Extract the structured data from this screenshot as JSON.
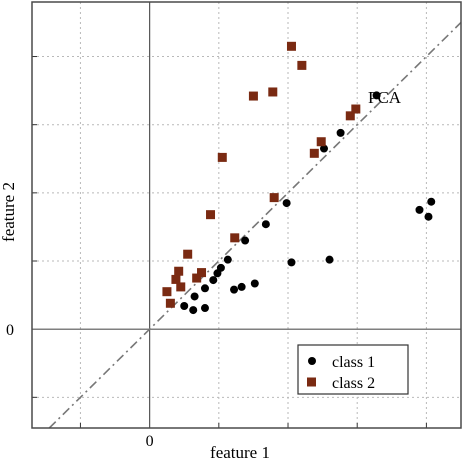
{
  "chart_data": {
    "type": "scatter",
    "xlabel": "feature 1",
    "ylabel": "feature 2",
    "xlim": [
      -1.7,
      4.5
    ],
    "ylim": [
      -1.45,
      4.8
    ],
    "x_ticks": [
      {
        "value": 0,
        "label": "0"
      }
    ],
    "y_ticks": [
      {
        "value": 0,
        "label": "0"
      }
    ],
    "grid": true,
    "annotation": "PCA",
    "legend_position": "bottom-right",
    "series": [
      {
        "name": "class 1",
        "marker": "circle",
        "color": "#000000",
        "points": [
          [
            0.5,
            0.34
          ],
          [
            0.65,
            0.48
          ],
          [
            0.8,
            0.6
          ],
          [
            0.92,
            0.72
          ],
          [
            0.98,
            0.82
          ],
          [
            1.03,
            0.9
          ],
          [
            1.13,
            1.02
          ],
          [
            1.38,
            1.3
          ],
          [
            1.68,
            1.54
          ],
          [
            1.98,
            1.85
          ],
          [
            2.52,
            2.65
          ],
          [
            2.76,
            2.88
          ],
          [
            3.28,
            3.43
          ],
          [
            0.63,
            0.28
          ],
          [
            0.8,
            0.31
          ],
          [
            1.22,
            0.58
          ],
          [
            1.33,
            0.62
          ],
          [
            1.52,
            0.67
          ],
          [
            2.05,
            0.98
          ],
          [
            2.6,
            1.02
          ],
          [
            3.9,
            1.75
          ],
          [
            4.03,
            1.65
          ],
          [
            4.07,
            1.87
          ]
        ]
      },
      {
        "name": "class 2",
        "marker": "square",
        "color": "#7a2a12",
        "points": [
          [
            0.25,
            0.55
          ],
          [
            0.3,
            0.38
          ],
          [
            0.38,
            0.73
          ],
          [
            0.42,
            0.85
          ],
          [
            0.45,
            0.62
          ],
          [
            0.55,
            1.1
          ],
          [
            0.68,
            0.75
          ],
          [
            0.75,
            0.83
          ],
          [
            0.88,
            1.68
          ],
          [
            1.05,
            2.52
          ],
          [
            1.23,
            1.34
          ],
          [
            1.5,
            3.42
          ],
          [
            1.78,
            3.48
          ],
          [
            1.8,
            1.93
          ],
          [
            2.05,
            4.15
          ],
          [
            2.2,
            3.87
          ],
          [
            2.38,
            2.58
          ],
          [
            2.48,
            2.75
          ],
          [
            2.9,
            3.13
          ],
          [
            2.98,
            3.23
          ]
        ]
      }
    ]
  }
}
